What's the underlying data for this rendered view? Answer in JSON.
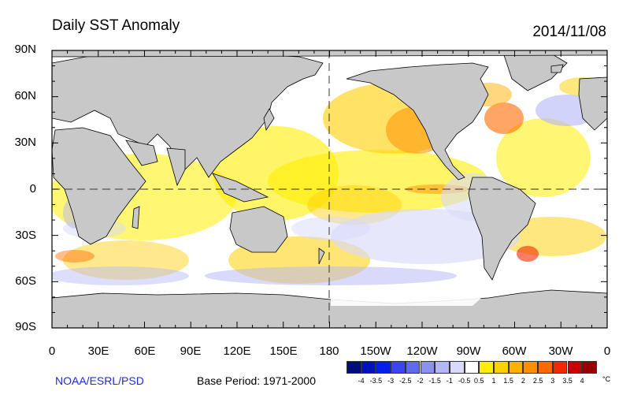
{
  "title": "Daily SST Anomaly",
  "date": "2014/11/08",
  "credit": "NOAA/ESRL/PSD",
  "base_period": "Base Period: 1971-2000",
  "lat_labels": [
    "90N",
    "60N",
    "30N",
    "0",
    "30S",
    "60S",
    "90S"
  ],
  "lon_labels": [
    "0",
    "30E",
    "60E",
    "90E",
    "120E",
    "150E",
    "180",
    "150W",
    "120W",
    "90W",
    "60W",
    "30W",
    "0"
  ],
  "colorbar": {
    "unit": "°C",
    "ticks": [
      "-4",
      "-3.5",
      "-3",
      "-2.5",
      "-2",
      "-1.5",
      "-1",
      "-0.5",
      "0.5",
      "1",
      "1.5",
      "2",
      "2.5",
      "3",
      "3.5",
      "4"
    ],
    "colors": [
      "#000e7a",
      "#0012b8",
      "#0020e8",
      "#3b46f0",
      "#6169f0",
      "#8c90f3",
      "#b3b6f8",
      "#d8daf9",
      "#ffffff",
      "#ffee00",
      "#ffcf00",
      "#ffb000",
      "#ff8f00",
      "#ff6a00",
      "#f02a00",
      "#c80000",
      "#960000"
    ]
  },
  "map_colors": {
    "land": "#c8c8c8",
    "ice": "#ffffff",
    "coast": "#000000"
  }
}
